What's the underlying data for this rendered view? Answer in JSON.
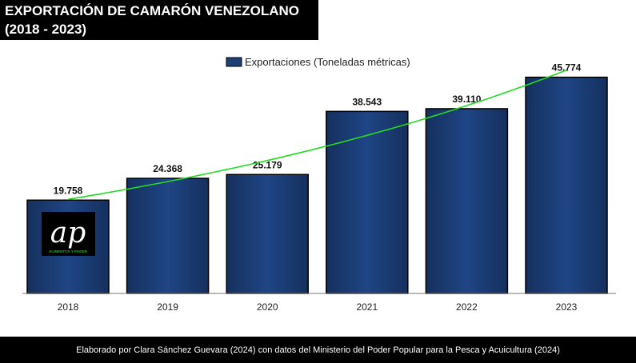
{
  "header": {
    "title_line1": "EXPORTACIÓN DE CAMARÓN VENEZOLANO",
    "title_line2": "(2018 - 2023)"
  },
  "chart_data": {
    "type": "bar",
    "title": "EXPORTACIÓN DE CAMARÓN VENEZOLANO (2018 - 2023)",
    "categories": [
      "2018",
      "2019",
      "2020",
      "2021",
      "2022",
      "2023"
    ],
    "values": [
      19758,
      24368,
      25179,
      38543,
      39110,
      45774
    ],
    "value_labels": [
      "19.758",
      "24.368",
      "25.179",
      "38.543",
      "39.110",
      "45.774"
    ],
    "series": [
      {
        "name": "Exportaciones (Toneladas métricas)",
        "values": [
          19758,
          24368,
          25179,
          38543,
          39110,
          45774
        ]
      }
    ],
    "trendline": {
      "type": "exponential",
      "color": "#22dd22"
    },
    "legend_position": "top",
    "xlabel": "",
    "ylabel": "",
    "ylim": [
      0,
      50000
    ],
    "grid": false,
    "colors": {
      "bar": "#1c3f78",
      "bar_border": "#000000",
      "trend": "#22dd22"
    }
  },
  "logo": {
    "mark": "ap",
    "tagline": "ALIMENTOS Y PODER"
  },
  "footer": {
    "source": "Elaborado por Clara Sánchez Guevara (2024) con datos del Ministerio del Poder Popular para la Pesca y Acuicultura (2024)"
  }
}
